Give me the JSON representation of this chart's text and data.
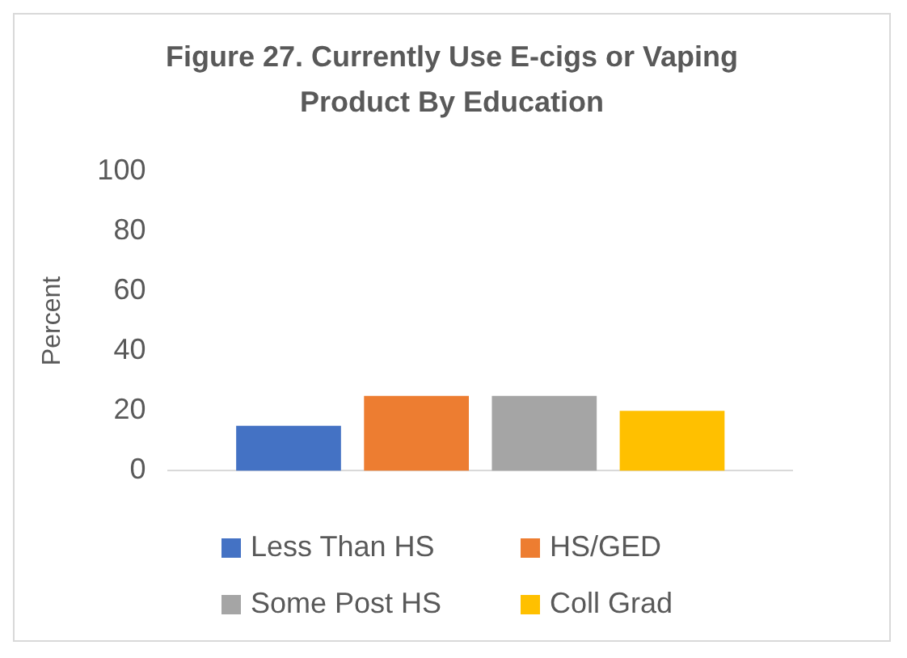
{
  "chart_data": {
    "type": "bar",
    "title": "Figure 27. Currently Use E-cigs or Vaping Product By Education",
    "ylabel": "Percent",
    "categories": [
      null
    ],
    "series": [
      {
        "name": "Less Than HS",
        "color": "#4472c4",
        "values": [
          15
        ]
      },
      {
        "name": "HS/GED",
        "color": "#ed7d31",
        "values": [
          25
        ]
      },
      {
        "name": "Some Post HS",
        "color": "#a5a5a5",
        "values": [
          25
        ]
      },
      {
        "name": "Coll Grad",
        "color": "#ffc000",
        "values": [
          20
        ]
      }
    ],
    "ylim": [
      0,
      100
    ],
    "yticks": [
      0,
      20,
      40,
      60,
      80,
      100
    ],
    "grid": false,
    "legend": "bottom"
  }
}
